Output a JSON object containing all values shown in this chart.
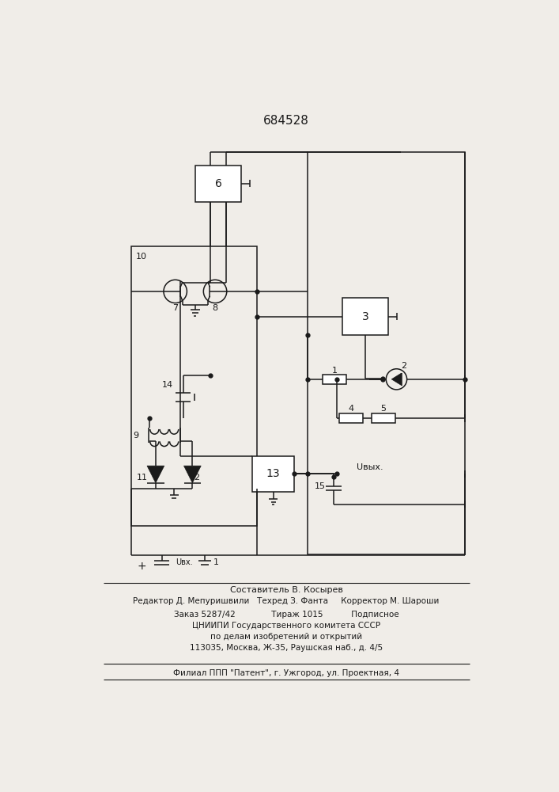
{
  "title": "684528",
  "bg_color": "#f0ede8",
  "line_color": "#1a1a1a",
  "footer_lines": [
    "Составитель В. Косырев",
    "Редактор Д. Мепуришвили   Техред З. Фанта     Корректор М. Шароши",
    "Заказ 5287/42              Тираж 1015           Подписное",
    "ЦНИИПИ Государственного комитета СССР",
    "по делам изобретений и открытий",
    "113035, Москва, Ж-35, Раушская наб., д. 4/5",
    "Филиал ППП \"Патент\", г. Ужгород, ул. Проектная, 4"
  ]
}
